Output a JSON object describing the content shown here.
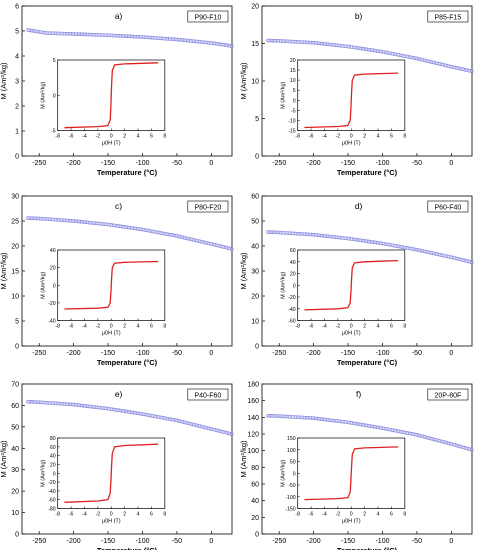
{
  "figure": {
    "panels": 6
  },
  "chart_data": [
    {
      "type": "scatter",
      "panel_label": "a)",
      "sample": "P90-F10",
      "xlabel": "Temperature (°C)",
      "ylabel": "M (Am²/kg)",
      "xlim": [
        -275,
        30
      ],
      "ylim": [
        0,
        6
      ],
      "xticks": [
        -250,
        -200,
        -150,
        -100,
        -50,
        0
      ],
      "yticks": [
        0,
        1,
        2,
        3,
        4,
        5,
        6
      ],
      "series_color": "#8080e0",
      "x": [
        -268,
        -240,
        -200,
        -150,
        -100,
        -50,
        0,
        30
      ],
      "y": [
        5.05,
        4.92,
        4.88,
        4.83,
        4.76,
        4.66,
        4.52,
        4.4
      ],
      "inset": {
        "type": "line",
        "color": "#e02020",
        "xlabel": "μ0H (T)",
        "ylabel": "M (Am²/kg)",
        "xlim": [
          -8,
          8
        ],
        "ylim": [
          -5,
          5
        ],
        "xticks": [
          -8,
          -6,
          -4,
          -2,
          0,
          2,
          4,
          6,
          8
        ],
        "yticks": [
          -5,
          0,
          5
        ],
        "x": [
          -7,
          -2,
          -0.5,
          -0.15,
          -0.05,
          0.05,
          0.15,
          0.5,
          2,
          7
        ],
        "y": [
          -4.6,
          -4.45,
          -4.3,
          -3.5,
          -1.5,
          1.5,
          3.5,
          4.3,
          4.45,
          4.6
        ]
      }
    },
    {
      "type": "scatter",
      "panel_label": "b)",
      "sample": "P85-F15",
      "xlabel": "Temperature (°C)",
      "ylabel": "M (Am²/kg)",
      "xlim": [
        -275,
        30
      ],
      "ylim": [
        0,
        20
      ],
      "xticks": [
        -250,
        -200,
        -150,
        -100,
        -50,
        0
      ],
      "yticks": [
        0,
        5,
        10,
        15,
        20
      ],
      "series_color": "#8080e0",
      "x": [
        -268,
        -250,
        -200,
        -150,
        -100,
        -50,
        0,
        30
      ],
      "y": [
        15.4,
        15.35,
        15.1,
        14.6,
        13.9,
        13.0,
        11.9,
        11.3
      ],
      "inset": {
        "type": "line",
        "color": "#e02020",
        "xlabel": "μ0H (T)",
        "ylabel": "M (Am²/kg)",
        "xlim": [
          -8,
          8
        ],
        "ylim": [
          -15,
          20
        ],
        "xticks": [
          -8,
          -6,
          -4,
          -2,
          0,
          2,
          4,
          6,
          8
        ],
        "yticks": [
          -15,
          -10,
          -5,
          0,
          5,
          10,
          15,
          20
        ],
        "x": [
          -7,
          -2,
          -0.5,
          -0.15,
          -0.05,
          0.05,
          0.15,
          0.5,
          2,
          7
        ],
        "y": [
          -13.5,
          -13.0,
          -12.5,
          -10,
          -4,
          4,
          10,
          12.5,
          13.0,
          13.5
        ]
      }
    },
    {
      "type": "scatter",
      "panel_label": "c)",
      "sample": "P80-F20",
      "xlabel": "Temperature (°C)",
      "ylabel": "M (Am²/kg)",
      "xlim": [
        -275,
        30
      ],
      "ylim": [
        0,
        30
      ],
      "xticks": [
        -250,
        -200,
        -150,
        -100,
        -50,
        0
      ],
      "yticks": [
        0,
        5,
        10,
        15,
        20,
        25,
        30
      ],
      "series_color": "#8080e0",
      "x": [
        -268,
        -250,
        -200,
        -150,
        -100,
        -50,
        0,
        30
      ],
      "y": [
        25.6,
        25.5,
        25.0,
        24.3,
        23.3,
        22.0,
        20.4,
        19.4
      ],
      "inset": {
        "type": "line",
        "color": "#e02020",
        "xlabel": "μ0H (T)",
        "ylabel": "M (Am²/kg)",
        "xlim": [
          -8,
          8
        ],
        "ylim": [
          -40,
          40
        ],
        "xticks": [
          -8,
          -6,
          -4,
          -2,
          0,
          2,
          4,
          6,
          8
        ],
        "yticks": [
          -40,
          -20,
          0,
          20,
          40
        ],
        "x": [
          -7,
          -2,
          -0.5,
          -0.15,
          -0.05,
          0.05,
          0.15,
          0.5,
          2,
          7
        ],
        "y": [
          -27,
          -26,
          -25,
          -20,
          -8,
          8,
          20,
          25,
          26,
          27
        ]
      }
    },
    {
      "type": "scatter",
      "panel_label": "d)",
      "sample": "P60-F40",
      "xlabel": "Temperature (°C)",
      "ylabel": "M (Am²/kg)",
      "xlim": [
        -275,
        30
      ],
      "ylim": [
        0,
        60
      ],
      "xticks": [
        -250,
        -200,
        -150,
        -100,
        -50,
        0
      ],
      "yticks": [
        0,
        10,
        20,
        30,
        40,
        50,
        60
      ],
      "series_color": "#8080e0",
      "x": [
        -268,
        -250,
        -200,
        -150,
        -100,
        -50,
        0,
        30
      ],
      "y": [
        45.6,
        45.4,
        44.5,
        43.0,
        41.0,
        38.5,
        35.5,
        33.5
      ],
      "inset": {
        "type": "line",
        "color": "#e02020",
        "xlabel": "μ0H (T)",
        "ylabel": "M (Am²/kg)",
        "xlim": [
          -8,
          8
        ],
        "ylim": [
          -60,
          60
        ],
        "xticks": [
          -8,
          -6,
          -4,
          -2,
          0,
          2,
          4,
          6,
          8
        ],
        "yticks": [
          -60,
          -40,
          -20,
          0,
          20,
          40,
          60
        ],
        "x": [
          -7,
          -2,
          -0.5,
          -0.15,
          -0.05,
          0.05,
          0.15,
          0.5,
          2,
          7
        ],
        "y": [
          -42,
          -40,
          -38,
          -30,
          -12,
          12,
          30,
          38,
          40,
          42
        ]
      }
    },
    {
      "type": "scatter",
      "panel_label": "e)",
      "sample": "P40-F60",
      "xlabel": "Temperature (°C)",
      "ylabel": "M (Am²/kg)",
      "xlim": [
        -275,
        30
      ],
      "ylim": [
        0,
        70
      ],
      "xticks": [
        -250,
        -200,
        -150,
        -100,
        -50,
        0
      ],
      "yticks": [
        0,
        10,
        20,
        30,
        40,
        50,
        60,
        70
      ],
      "series_color": "#8080e0",
      "x": [
        -268,
        -250,
        -200,
        -150,
        -100,
        -50,
        0,
        30
      ],
      "y": [
        61.8,
        61.5,
        60.4,
        58.5,
        56.0,
        53.0,
        49.0,
        46.6
      ],
      "inset": {
        "type": "line",
        "color": "#e02020",
        "xlabel": "μ0H (T)",
        "ylabel": "M (Am²/kg)",
        "xlim": [
          -8,
          8
        ],
        "ylim": [
          -80,
          80
        ],
        "xticks": [
          -8,
          -6,
          -4,
          -2,
          0,
          2,
          4,
          6,
          8
        ],
        "yticks": [
          -80,
          -60,
          -40,
          -20,
          0,
          20,
          40,
          60,
          80
        ],
        "x": [
          -7,
          -2,
          -0.5,
          -0.15,
          -0.05,
          0.05,
          0.15,
          0.5,
          2,
          7
        ],
        "y": [
          -66,
          -63,
          -60,
          -45,
          -18,
          18,
          45,
          60,
          63,
          66
        ]
      }
    },
    {
      "type": "scatter",
      "panel_label": "f)",
      "sample": "20P-80F",
      "xlabel": "Temperature (°C)",
      "ylabel": "M (Am²/kg)",
      "xlim": [
        -275,
        30
      ],
      "ylim": [
        0,
        180
      ],
      "xticks": [
        -250,
        -200,
        -150,
        -100,
        -50,
        0
      ],
      "yticks": [
        0,
        20,
        40,
        60,
        80,
        100,
        120,
        140,
        160,
        180
      ],
      "series_color": "#8080e0",
      "x": [
        -268,
        -250,
        -200,
        -150,
        -100,
        -50,
        0,
        30
      ],
      "y": [
        142,
        141.5,
        139,
        134,
        127,
        119,
        108,
        101
      ],
      "inset": {
        "type": "line",
        "color": "#e02020",
        "xlabel": "μ0H (T)",
        "ylabel": "M (Am²/kg)",
        "xlim": [
          -8,
          8
        ],
        "ylim": [
          -150,
          150
        ],
        "xticks": [
          -8,
          -6,
          -4,
          -2,
          0,
          2,
          4,
          6,
          8
        ],
        "yticks": [
          -150,
          -100,
          -50,
          0,
          50,
          100,
          150
        ],
        "x": [
          -7,
          -2,
          -0.5,
          -0.15,
          -0.05,
          0.05,
          0.15,
          0.5,
          2,
          7
        ],
        "y": [
          -112,
          -108,
          -104,
          -80,
          -30,
          30,
          80,
          104,
          108,
          112
        ]
      }
    }
  ]
}
